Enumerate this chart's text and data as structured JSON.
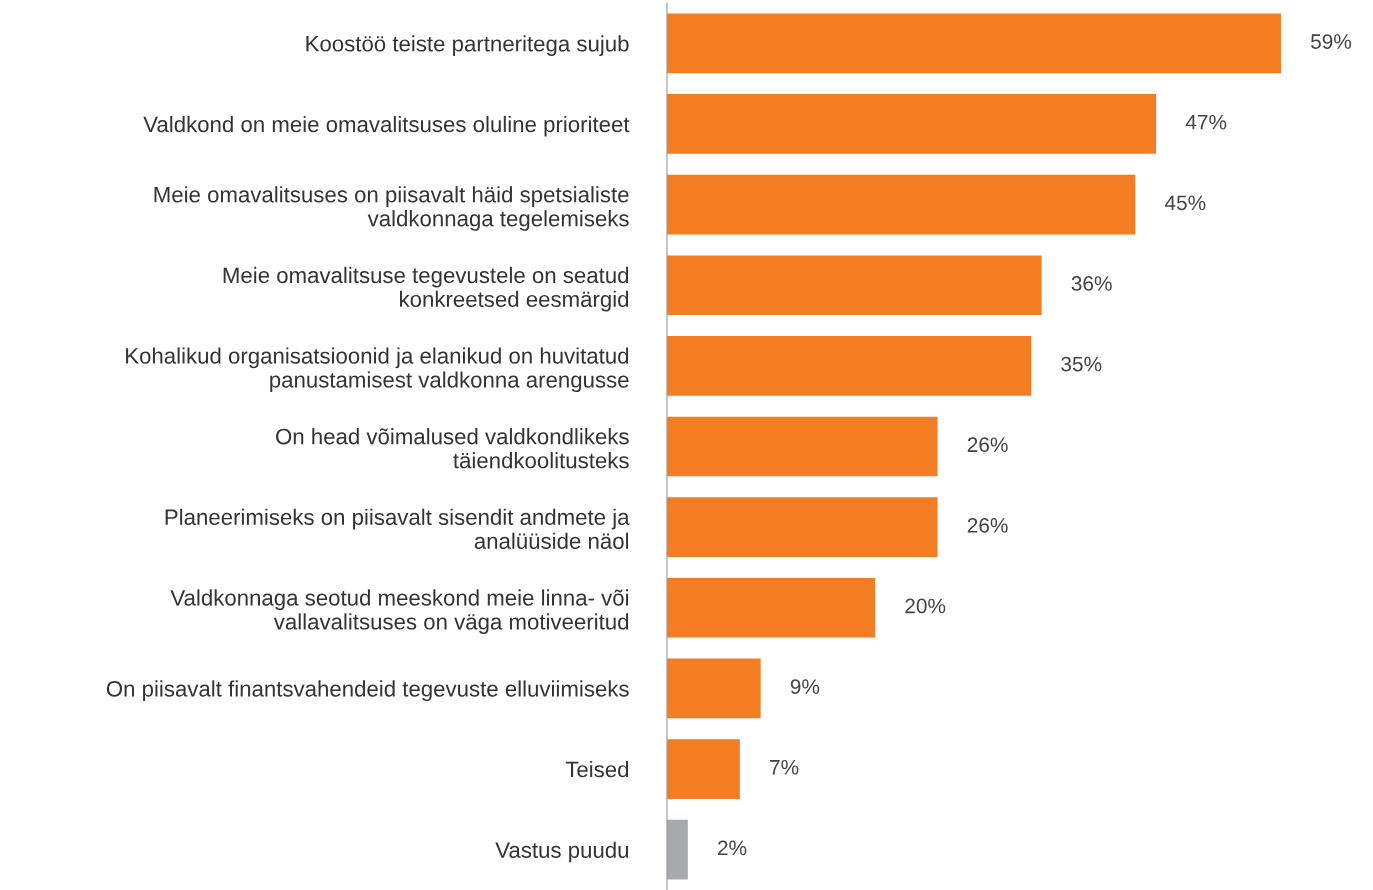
{
  "chart_data": {
    "type": "bar",
    "orientation": "horizontal",
    "categories": [
      "Koostöö teiste partneritega sujub",
      "Valdkond on meie omavalitsuses oluline prioriteet",
      "Meie omavalitsuses on piisavalt häid spetsialiste\nvaldkonnaga tegelemiseks",
      "Meie omavalitsuse tegevustele on seatud\nkonkreetsed eesmärgid",
      "Kohalikud organisatsioonid ja elanikud on huvitatud\npanustamisest valdkonna arengusse",
      "On head võimalused valdkondlikeks\ntäiendkoolitusteks",
      "Planeerimiseks on piisavalt sisendit andmete ja\nanalüüside näol",
      "Valdkonnaga seotud meeskond meie linna- või\nvallavalitsuses on väga motiveeritud",
      "On piisavalt finantsvahendeid tegevuste elluviimiseks",
      "Teised",
      "Vastus puudu"
    ],
    "values": [
      59,
      47,
      45,
      36,
      35,
      26,
      26,
      20,
      9,
      7,
      2
    ],
    "colors": [
      "#f47c22",
      "#f47c22",
      "#f47c22",
      "#f47c22",
      "#f47c22",
      "#f47c22",
      "#f47c22",
      "#f47c22",
      "#f47c22",
      "#f47c22",
      "#a7a9ac"
    ],
    "value_labels": [
      "59%",
      "47%",
      "45%",
      "36%",
      "35%",
      "26%",
      "26%",
      "20%",
      "9%",
      "7%",
      "2%"
    ],
    "grid": false,
    "legend": false
  }
}
